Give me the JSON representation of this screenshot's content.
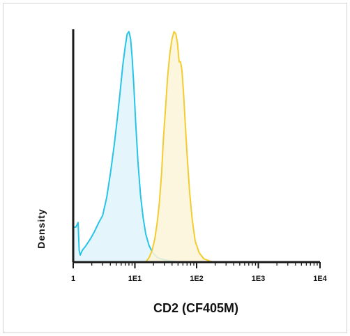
{
  "chart_data": {
    "type": "area",
    "xlabel": "CD2 (CF405M)",
    "ylabel": "Density",
    "xscale": "log",
    "xlim": [
      1,
      10000
    ],
    "ylim": [
      0,
      1.0
    ],
    "xticks": [
      1,
      10,
      100,
      1000,
      10000
    ],
    "xtick_labels": [
      "1",
      "1E1",
      "1E2",
      "1E3",
      "1E4"
    ],
    "grid": false,
    "legend": "none",
    "series": [
      {
        "color": "#27c4e8",
        "fill": "#dff4fb",
        "x": [
          1.0,
          1.1,
          1.2,
          1.25,
          1.3,
          1.4,
          1.6,
          1.9,
          2.2,
          2.6,
          3.0,
          3.5,
          4.0,
          4.6,
          5.2,
          5.8,
          6.4,
          7.0,
          7.5,
          8.0,
          8.5,
          9.0,
          9.6,
          10.3,
          11.2,
          12.3,
          13.6,
          15.0,
          17.0,
          19.5,
          23.0,
          28.0,
          35.0,
          45.0,
          60.0,
          75.0
        ],
        "y": [
          0.15,
          0.15,
          0.17,
          0.05,
          0.03,
          0.05,
          0.07,
          0.1,
          0.13,
          0.17,
          0.2,
          0.28,
          0.38,
          0.5,
          0.62,
          0.74,
          0.85,
          0.93,
          0.98,
          0.99,
          0.96,
          0.88,
          0.76,
          0.6,
          0.43,
          0.29,
          0.19,
          0.12,
          0.07,
          0.04,
          0.02,
          0.012,
          0.006,
          0.003,
          0.001,
          0.0
        ]
      },
      {
        "color": "#f2cc30",
        "fill": "#fdf5d8",
        "x": [
          15.0,
          17.0,
          19.0,
          21.0,
          23.0,
          25.0,
          27.0,
          29.0,
          31.5,
          34.0,
          37.0,
          40.0,
          43.0,
          46.0,
          49.0,
          52.0,
          55.0,
          58.0,
          62.0,
          66.0,
          71.0,
          77.0,
          85.0,
          95.0,
          110.0,
          130.0,
          160.0,
          190.0
        ],
        "y": [
          0.0,
          0.02,
          0.05,
          0.1,
          0.17,
          0.26,
          0.38,
          0.53,
          0.67,
          0.8,
          0.9,
          0.96,
          0.99,
          0.98,
          0.94,
          0.86,
          0.86,
          0.82,
          0.71,
          0.58,
          0.44,
          0.3,
          0.18,
          0.09,
          0.04,
          0.015,
          0.005,
          0.0
        ]
      }
    ]
  }
}
